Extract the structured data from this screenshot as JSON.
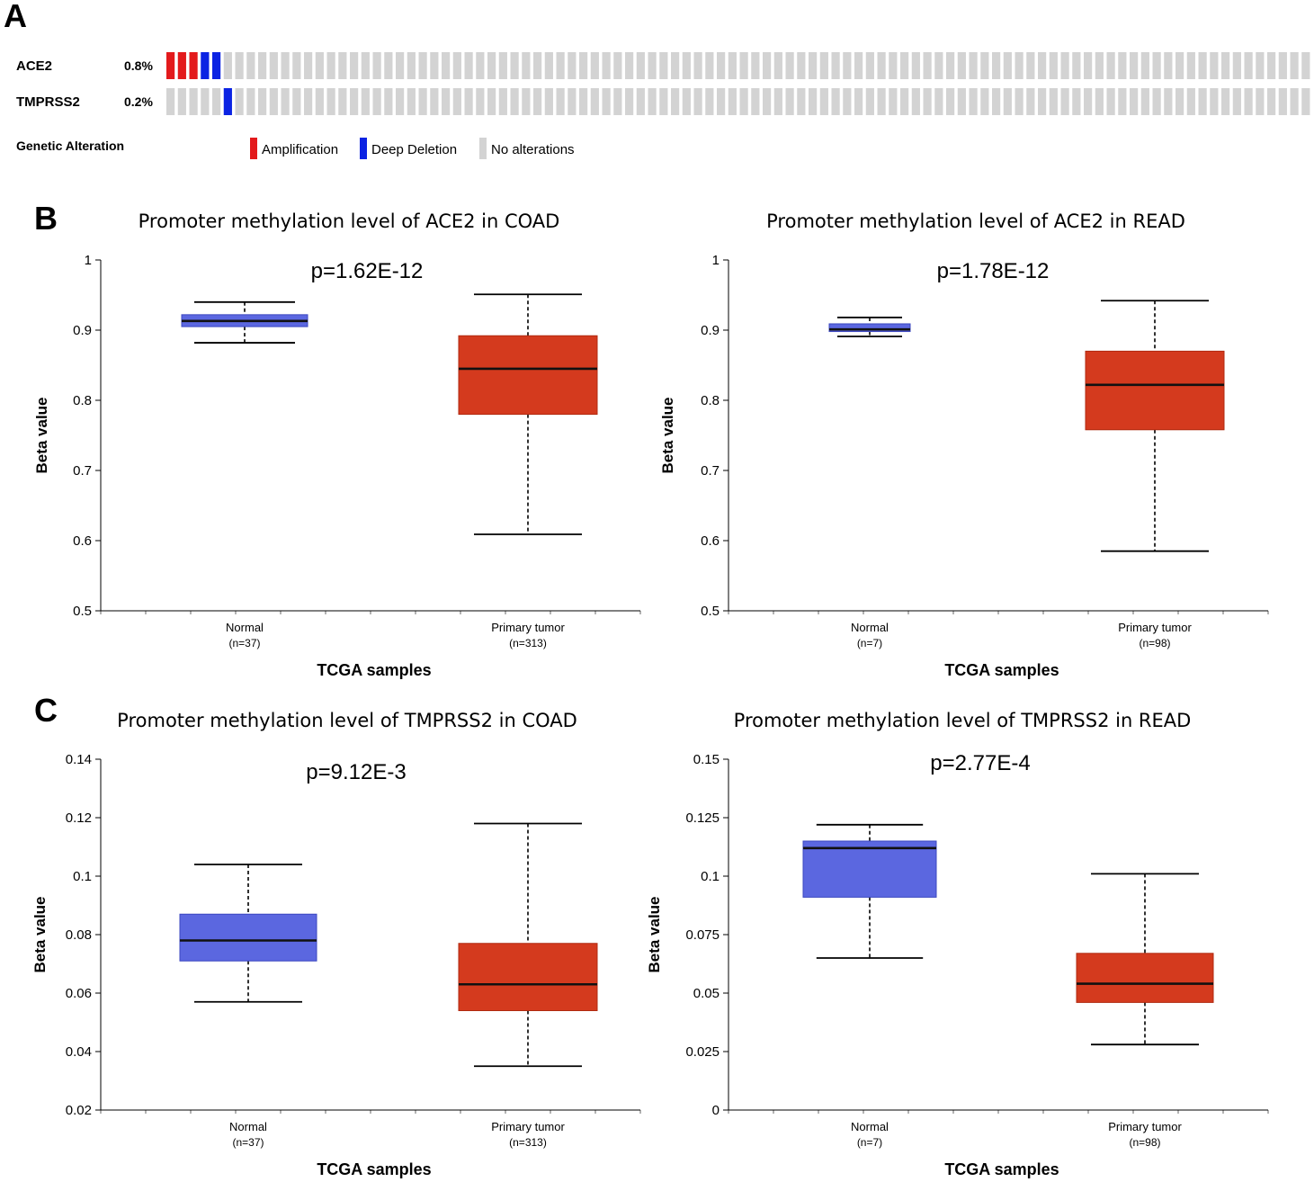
{
  "panels": {
    "a": "A",
    "b": "B",
    "c": "C"
  },
  "oncoprint": {
    "sample_count": 100,
    "genes": [
      {
        "name": "ACE2",
        "percent": "0.8%",
        "alterations": [
          {
            "index": 0,
            "type": "amp"
          },
          {
            "index": 1,
            "type": "amp"
          },
          {
            "index": 2,
            "type": "amp"
          },
          {
            "index": 3,
            "type": "del"
          },
          {
            "index": 4,
            "type": "del"
          }
        ]
      },
      {
        "name": "TMPRSS2",
        "percent": "0.2%",
        "alterations": [
          {
            "index": 5,
            "type": "del"
          }
        ]
      }
    ],
    "legend": {
      "title": "Genetic Alteration",
      "items": [
        {
          "label": "Amplification",
          "color": "#e31a1c"
        },
        {
          "label": "Deep Deletion",
          "color": "#0b23e3"
        },
        {
          "label": "No alterations",
          "color": "#d3d3d3"
        }
      ]
    }
  },
  "colors": {
    "normal": "#5b67e0",
    "tumor": "#d43a1e",
    "normal_border": "#3b47c0",
    "tumor_border": "#b02a10"
  },
  "chart_data": [
    {
      "type": "box",
      "title": "Promoter methylation level of ACE2 in COAD",
      "pvalue": "p=1.62E-12",
      "ylabel": "Beta value",
      "xlabel": "TCGA samples",
      "ylim": [
        0.5,
        1
      ],
      "yticks": [
        "0.5",
        "0.6",
        "0.7",
        "0.8",
        "0.9",
        "1"
      ],
      "groups": [
        {
          "name": "Normal",
          "n": "(n=37)",
          "color": "normal",
          "min": 0.882,
          "q1": 0.905,
          "median": 0.913,
          "q3": 0.922,
          "max": 0.94
        },
        {
          "name": "Primary tumor",
          "n": "(n=313)",
          "color": "tumor",
          "min": 0.609,
          "q1": 0.78,
          "median": 0.845,
          "q3": 0.892,
          "max": 0.951
        }
      ]
    },
    {
      "type": "box",
      "title": "Promoter methylation level of ACE2 in READ",
      "pvalue": "p=1.78E-12",
      "ylabel": "Beta value",
      "xlabel": "TCGA samples",
      "ylim": [
        0.5,
        1
      ],
      "yticks": [
        "0.5",
        "0.6",
        "0.7",
        "0.8",
        "0.9",
        "1"
      ],
      "groups": [
        {
          "name": "Normal",
          "n": "(n=7)",
          "color": "normal",
          "min": 0.891,
          "q1": 0.898,
          "median": 0.901,
          "q3": 0.909,
          "max": 0.918
        },
        {
          "name": "Primary tumor",
          "n": "(n=98)",
          "color": "tumor",
          "min": 0.585,
          "q1": 0.758,
          "median": 0.822,
          "q3": 0.87,
          "max": 0.942
        }
      ]
    },
    {
      "type": "box",
      "title": "Promoter methylation level of TMPRSS2 in COAD",
      "pvalue": "p=9.12E-3",
      "ylabel": "Beta value",
      "xlabel": "TCGA samples",
      "ylim": [
        0.02,
        0.14
      ],
      "yticks": [
        "0.02",
        "0.04",
        "0.06",
        "0.08",
        "0.1",
        "0.12",
        "0.14"
      ],
      "groups": [
        {
          "name": "Normal",
          "n": "(n=37)",
          "color": "normal",
          "min": 0.057,
          "q1": 0.071,
          "median": 0.078,
          "q3": 0.087,
          "max": 0.104
        },
        {
          "name": "Primary tumor",
          "n": "(n=313)",
          "color": "tumor",
          "min": 0.035,
          "q1": 0.054,
          "median": 0.063,
          "q3": 0.077,
          "max": 0.118
        }
      ]
    },
    {
      "type": "box",
      "title": "Promoter methylation level of TMPRSS2 in READ",
      "pvalue": "p=2.77E-4",
      "ylabel": "Beta value",
      "xlabel": "TCGA samples",
      "ylim": [
        0,
        0.15
      ],
      "yticks": [
        "0",
        "0.025",
        "0.05",
        "0.075",
        "0.1",
        "0.125",
        "0.15"
      ],
      "groups": [
        {
          "name": "Normal",
          "n": "(n=7)",
          "color": "normal",
          "min": 0.065,
          "q1": 0.091,
          "median": 0.112,
          "q3": 0.115,
          "max": 0.122
        },
        {
          "name": "Primary tumor",
          "n": "(n=98)",
          "color": "tumor",
          "min": 0.028,
          "q1": 0.046,
          "median": 0.054,
          "q3": 0.067,
          "max": 0.101
        }
      ]
    }
  ]
}
